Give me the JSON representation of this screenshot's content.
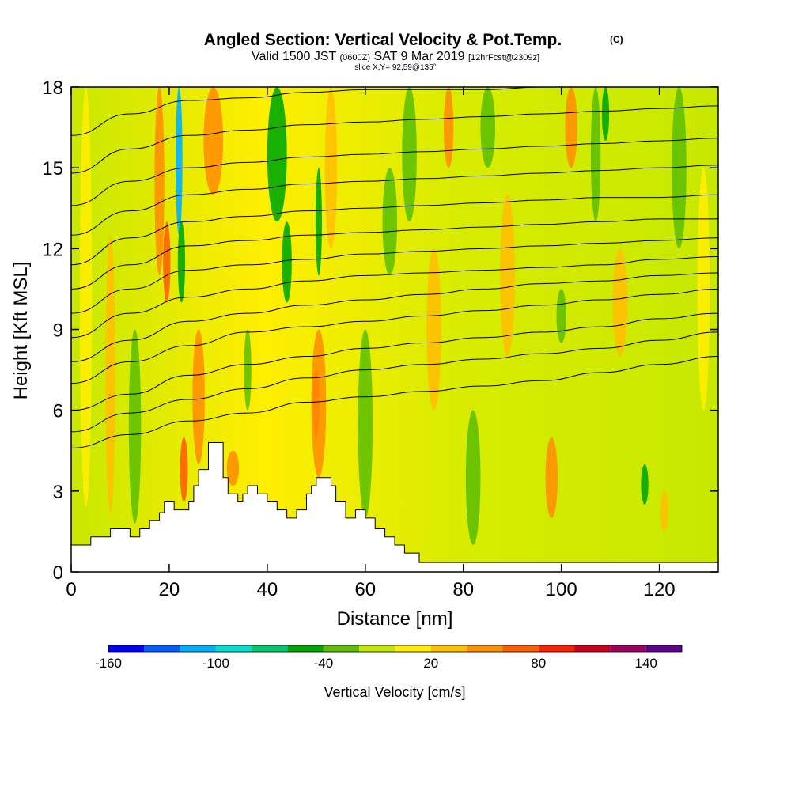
{
  "chart_data": {
    "type": "heatmap",
    "title": "Angled Section: Vertical Velocity & Pot.Temp.",
    "title_mark": "(C)",
    "subtitle": {
      "valid": "Valid 1500 JST",
      "zulu": "(0600Z)",
      "date": "SAT 9 Mar 2019",
      "forecast": "[12hrFcst@2309z]"
    },
    "slice_label": "slice X,Y= 92,59@135°",
    "xlabel": "Distance [nm]",
    "ylabel": "Height [Kft MSL]",
    "xlim": [
      0,
      132
    ],
    "ylim": [
      0,
      18
    ],
    "x_ticks": [
      0,
      20,
      40,
      60,
      80,
      100,
      120
    ],
    "y_ticks": [
      0,
      3,
      6,
      9,
      12,
      15,
      18
    ],
    "colorbar": {
      "label": "Vertical Velocity [cm/s]",
      "tick_labels": [
        "-160",
        "-100",
        "-40",
        "20",
        "80",
        "140"
      ],
      "min": -160,
      "max": 160,
      "colors": [
        "#0000ff",
        "#0060ff",
        "#00b0ff",
        "#00e0d0",
        "#00c870",
        "#00a800",
        "#60c000",
        "#c0e800",
        "#ffee00",
        "#ffc000",
        "#ff9000",
        "#ff6000",
        "#ff2000",
        "#d00020",
        "#a00060",
        "#600090"
      ]
    },
    "terrain_kft": [
      [
        0,
        1.0
      ],
      [
        4,
        1.0
      ],
      [
        4,
        1.3
      ],
      [
        8,
        1.3
      ],
      [
        8,
        1.6
      ],
      [
        12,
        1.6
      ],
      [
        12,
        1.3
      ],
      [
        14,
        1.3
      ],
      [
        14,
        1.6
      ],
      [
        16,
        1.6
      ],
      [
        16,
        1.9
      ],
      [
        18,
        1.9
      ],
      [
        18,
        2.2
      ],
      [
        19,
        2.2
      ],
      [
        19,
        2.6
      ],
      [
        21,
        2.6
      ],
      [
        21,
        2.3
      ],
      [
        24,
        2.3
      ],
      [
        24,
        2.6
      ],
      [
        25,
        2.6
      ],
      [
        25,
        3.2
      ],
      [
        26,
        3.2
      ],
      [
        26,
        3.8
      ],
      [
        28,
        3.8
      ],
      [
        28,
        4.8
      ],
      [
        31,
        4.8
      ],
      [
        31,
        3.5
      ],
      [
        32,
        3.5
      ],
      [
        32,
        2.9
      ],
      [
        34,
        2.9
      ],
      [
        34,
        2.6
      ],
      [
        35,
        2.6
      ],
      [
        35,
        2.9
      ],
      [
        36,
        2.9
      ],
      [
        36,
        3.2
      ],
      [
        38,
        3.2
      ],
      [
        38,
        2.9
      ],
      [
        40,
        2.9
      ],
      [
        40,
        2.6
      ],
      [
        42,
        2.6
      ],
      [
        42,
        2.3
      ],
      [
        44,
        2.3
      ],
      [
        44,
        2.0
      ],
      [
        46,
        2.0
      ],
      [
        46,
        2.3
      ],
      [
        48,
        2.3
      ],
      [
        48,
        2.9
      ],
      [
        49,
        2.9
      ],
      [
        49,
        3.2
      ],
      [
        50,
        3.2
      ],
      [
        50,
        3.5
      ],
      [
        53,
        3.5
      ],
      [
        53,
        3.2
      ],
      [
        54,
        3.2
      ],
      [
        54,
        2.6
      ],
      [
        56,
        2.6
      ],
      [
        56,
        2.0
      ],
      [
        58,
        2.0
      ],
      [
        58,
        2.3
      ],
      [
        60,
        2.3
      ],
      [
        60,
        2.0
      ],
      [
        62,
        2.0
      ],
      [
        62,
        1.6
      ],
      [
        64,
        1.6
      ],
      [
        64,
        1.3
      ],
      [
        66,
        1.3
      ],
      [
        66,
        1.0
      ],
      [
        68,
        1.0
      ],
      [
        68,
        0.7
      ],
      [
        71,
        0.7
      ],
      [
        71,
        0.35
      ],
      [
        132,
        0.35
      ]
    ],
    "vv_columns": [
      {
        "x": 3,
        "vv": 10,
        "bottom": 2.4,
        "top": 18,
        "w": 2.5
      },
      {
        "x": 8,
        "vv": 35,
        "bottom": 2.2,
        "top": 12.5,
        "w": 2.0
      },
      {
        "x": 13,
        "vv": -25,
        "bottom": 1.8,
        "top": 9,
        "w": 2.5
      },
      {
        "x": 18,
        "vv": 45,
        "bottom": 11,
        "top": 18,
        "w": 2.0
      },
      {
        "x": 19.5,
        "vv": 60,
        "bottom": 10,
        "top": 13,
        "w": 1.5
      },
      {
        "x": 22,
        "vv": -110,
        "bottom": 12.5,
        "top": 18,
        "w": 1.4
      },
      {
        "x": 22.5,
        "vv": -60,
        "bottom": 10,
        "top": 13,
        "w": 1.5
      },
      {
        "x": 23,
        "vv": 65,
        "bottom": 2.6,
        "top": 5,
        "w": 1.6
      },
      {
        "x": 26,
        "vv": 40,
        "bottom": 4,
        "top": 9,
        "w": 2.5
      },
      {
        "x": 29,
        "vv": 55,
        "bottom": 14,
        "top": 18,
        "w": 4.0
      },
      {
        "x": 33,
        "vv": 50,
        "bottom": 3.2,
        "top": 4.5,
        "w": 2.5
      },
      {
        "x": 36,
        "vv": -35,
        "bottom": 6,
        "top": 9,
        "w": 1.5
      },
      {
        "x": 42,
        "vv": -55,
        "bottom": 13,
        "top": 18,
        "w": 4.0
      },
      {
        "x": 44,
        "vv": -45,
        "bottom": 10,
        "top": 13,
        "w": 2.0
      },
      {
        "x": 50,
        "vv": 95,
        "bottom": 5,
        "top": 7.5,
        "w": 1.4
      },
      {
        "x": 50.5,
        "vv": 40,
        "bottom": 3.5,
        "top": 9,
        "w": 3.0
      },
      {
        "x": 50.5,
        "vv": -50,
        "bottom": 11,
        "top": 15,
        "w": 1.3
      },
      {
        "x": 53,
        "vv": 30,
        "bottom": 12,
        "top": 18,
        "w": 2.5
      },
      {
        "x": 60,
        "vv": -30,
        "bottom": 2,
        "top": 9,
        "w": 3.0
      },
      {
        "x": 65,
        "vv": -40,
        "bottom": 11,
        "top": 15,
        "w": 3.0
      },
      {
        "x": 69,
        "vv": -30,
        "bottom": 13,
        "top": 18,
        "w": 3.0
      },
      {
        "x": 74,
        "vv": 20,
        "bottom": 6,
        "top": 12,
        "w": 3.0
      },
      {
        "x": 77,
        "vv": 45,
        "bottom": 15,
        "top": 18,
        "w": 2.0
      },
      {
        "x": 82,
        "vv": -25,
        "bottom": 1,
        "top": 6,
        "w": 3.0
      },
      {
        "x": 85,
        "vv": -35,
        "bottom": 15,
        "top": 18,
        "w": 3.0
      },
      {
        "x": 89,
        "vv": 25,
        "bottom": 8,
        "top": 14,
        "w": 3.0
      },
      {
        "x": 98,
        "vv": 40,
        "bottom": 2,
        "top": 5,
        "w": 2.5
      },
      {
        "x": 100,
        "vv": -40,
        "bottom": 8.5,
        "top": 10.5,
        "w": 2.0
      },
      {
        "x": 102,
        "vv": 50,
        "bottom": 15,
        "top": 18,
        "w": 2.5
      },
      {
        "x": 107,
        "vv": -40,
        "bottom": 13,
        "top": 18,
        "w": 2.0
      },
      {
        "x": 109,
        "vv": -60,
        "bottom": 16,
        "top": 18,
        "w": 1.5
      },
      {
        "x": 112,
        "vv": 25,
        "bottom": 8,
        "top": 12,
        "w": 3.0
      },
      {
        "x": 117,
        "vv": -45,
        "bottom": 2.5,
        "top": 4,
        "w": 1.5
      },
      {
        "x": 121,
        "vv": 30,
        "bottom": 1.5,
        "top": 3,
        "w": 1.5
      },
      {
        "x": 124,
        "vv": -30,
        "bottom": 12,
        "top": 18,
        "w": 3.0
      },
      {
        "x": 129,
        "vv": 15,
        "bottom": 6,
        "top": 15,
        "w": 2.5
      }
    ],
    "isentropes_kft": [
      [
        4.6,
        5.1,
        5.6,
        5.9,
        6.3,
        6.5,
        6.7,
        6.9,
        7.1,
        7.4,
        7.7,
        8.0
      ],
      [
        5.2,
        5.9,
        6.4,
        6.8,
        7.2,
        7.5,
        7.7,
        7.9,
        8.1,
        8.3,
        8.6,
        8.9
      ],
      [
        6.0,
        6.6,
        7.3,
        7.7,
        8.0,
        8.3,
        8.5,
        8.7,
        8.9,
        9.1,
        9.4,
        9.6
      ],
      [
        7.0,
        7.8,
        8.4,
        8.9,
        9.1,
        9.3,
        9.5,
        9.7,
        9.9,
        10.1,
        10.3,
        10.5
      ],
      [
        7.8,
        8.6,
        9.3,
        9.6,
        9.9,
        10.1,
        10.3,
        10.5,
        10.7,
        10.8,
        11.0,
        11.1
      ],
      [
        8.7,
        9.6,
        10.2,
        10.5,
        10.8,
        11.0,
        11.1,
        11.2,
        11.3,
        11.4,
        11.6,
        11.7
      ],
      [
        9.6,
        10.5,
        11.2,
        11.4,
        11.6,
        11.8,
        11.9,
        12.0,
        12.1,
        12.2,
        12.3,
        12.4
      ],
      [
        10.5,
        11.4,
        12.1,
        12.3,
        12.5,
        12.6,
        12.7,
        12.8,
        12.9,
        13.0,
        13.1,
        13.1
      ],
      [
        11.4,
        12.4,
        13.0,
        13.2,
        13.4,
        13.5,
        13.6,
        13.7,
        13.8,
        13.9,
        13.9,
        14.0
      ],
      [
        12.5,
        13.4,
        14.0,
        14.2,
        14.4,
        14.5,
        14.6,
        14.7,
        14.8,
        14.9,
        15.0,
        15.1
      ],
      [
        13.6,
        14.5,
        15.0,
        15.2,
        15.4,
        15.5,
        15.6,
        15.7,
        15.8,
        15.9,
        16.0,
        16.1
      ],
      [
        14.8,
        15.7,
        16.2,
        16.4,
        16.6,
        16.7,
        16.8,
        16.9,
        17.0,
        17.1,
        17.2,
        17.3
      ],
      [
        16.2,
        17.0,
        17.5,
        17.6,
        17.8,
        17.9,
        17.9,
        17.9,
        18.0,
        18.0,
        18.0,
        18.0
      ]
    ],
    "isentrope_x": [
      0,
      12,
      24,
      36,
      48,
      60,
      72,
      84,
      96,
      108,
      120,
      132
    ]
  }
}
